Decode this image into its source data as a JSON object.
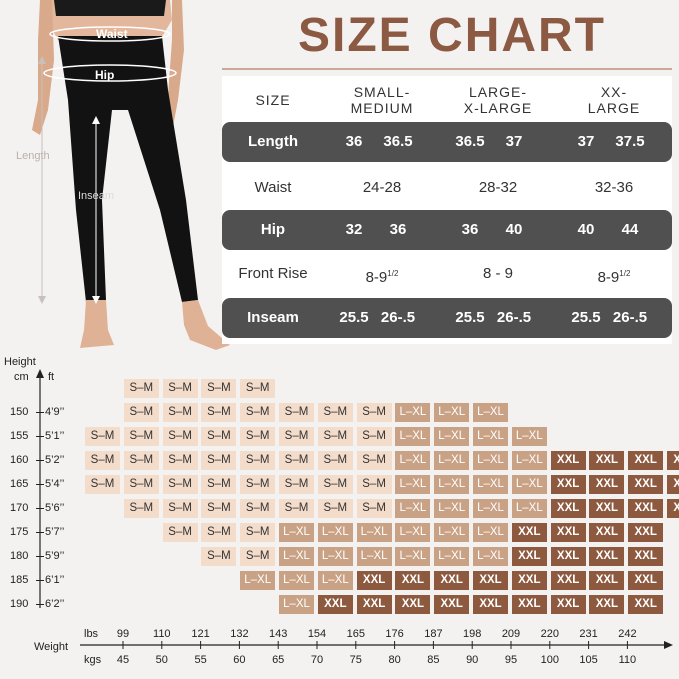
{
  "title": "SIZE CHART",
  "figure": {
    "waist_label": "Waist",
    "hip_label": "Hip",
    "length_label": "Length",
    "inseam_label": "Inseam"
  },
  "table": {
    "size_header": "SIZE",
    "columns": [
      {
        "line1": "SMALL-",
        "line2": "MEDIUM"
      },
      {
        "line1": "LARGE-",
        "line2": "X-LARGE"
      },
      {
        "line1": "XX-",
        "line2": "LARGE"
      }
    ],
    "rows": [
      {
        "label": "Length",
        "style": "dark",
        "values": [
          "36",
          "36.5",
          "36.5",
          "37",
          "37",
          "37.5"
        ]
      },
      {
        "label": "Waist",
        "style": "light",
        "values": [
          "24-28",
          "28-32",
          "32-36"
        ]
      },
      {
        "label": "Hip",
        "style": "dark",
        "values": [
          "32",
          "36",
          "36",
          "40",
          "40",
          "44"
        ]
      },
      {
        "label": "Front Rise",
        "style": "light",
        "values": [
          "8-9",
          "8 - 9",
          "8-9"
        ],
        "sup": [
          "1/2",
          "",
          "1/2"
        ]
      },
      {
        "label": "Inseam",
        "style": "dark",
        "values": [
          "25.5",
          "26-.5",
          "25.5",
          "26-.5",
          "25.5",
          "26-.5"
        ]
      }
    ]
  },
  "grid": {
    "height_label": "Height",
    "cm_label": "cm",
    "ft_label": "ft",
    "cm_ticks": [
      "150",
      "155",
      "160",
      "165",
      "170",
      "175",
      "180",
      "185",
      "190"
    ],
    "ft_ticks": [
      "4’9’’",
      "5’1’’",
      "5’2’’",
      "5’4’’",
      "5’6’’",
      "5’7’’",
      "5’9’’",
      "6’1’’",
      "6’2’’"
    ],
    "weight_label": "Weight",
    "lbs_label": "lbs",
    "kgs_label": "kgs",
    "lbs_ticks": [
      "99",
      "110",
      "121",
      "132",
      "143",
      "154",
      "165",
      "176",
      "187",
      "198",
      "209",
      "220",
      "231",
      "242"
    ],
    "kgs_ticks": [
      "45",
      "50",
      "55",
      "60",
      "65",
      "70",
      "75",
      "80",
      "85",
      "90",
      "95",
      "100",
      "105",
      "110"
    ],
    "size_labels": {
      "sm": "S–M",
      "lxl": "L–XL",
      "xxl": "XXL"
    },
    "rows": [
      {
        "start": 1,
        "cells": [
          "sm",
          "sm",
          "sm",
          "sm"
        ]
      },
      {
        "start": 1,
        "cells": [
          "sm",
          "sm",
          "sm",
          "sm",
          "sm",
          "sm",
          "sm",
          "lxl",
          "lxl",
          "lxl"
        ]
      },
      {
        "start": 0,
        "cells": [
          "sm",
          "sm",
          "sm",
          "sm",
          "sm",
          "sm",
          "sm",
          "sm",
          "lxl",
          "lxl",
          "lxl",
          "lxl"
        ]
      },
      {
        "start": 0,
        "cells": [
          "sm",
          "sm",
          "sm",
          "sm",
          "sm",
          "sm",
          "sm",
          "sm",
          "lxl",
          "lxl",
          "lxl",
          "lxl",
          "xxl",
          "xxl",
          "xxl",
          "xxl"
        ]
      },
      {
        "start": 0,
        "cells": [
          "sm",
          "sm",
          "sm",
          "sm",
          "sm",
          "sm",
          "sm",
          "sm",
          "lxl",
          "lxl",
          "lxl",
          "lxl",
          "xxl",
          "xxl",
          "xxl",
          "xxl"
        ]
      },
      {
        "start": 1,
        "cells": [
          "sm",
          "sm",
          "sm",
          "sm",
          "sm",
          "sm",
          "sm",
          "lxl",
          "lxl",
          "lxl",
          "lxl",
          "xxl",
          "xxl",
          "xxl",
          "xxl"
        ]
      },
      {
        "start": 2,
        "cells": [
          "sm",
          "sm",
          "sm",
          "lxl",
          "lxl",
          "lxl",
          "lxl",
          "lxl",
          "lxl",
          "xxl",
          "xxl",
          "xxl",
          "xxl"
        ]
      },
      {
        "start": 3,
        "cells": [
          "sm",
          "sm",
          "lxl",
          "lxl",
          "lxl",
          "lxl",
          "lxl",
          "lxl",
          "xxl",
          "xxl",
          "xxl",
          "xxl"
        ]
      },
      {
        "start": 4,
        "cells": [
          "lxl",
          "lxl",
          "lxl",
          "xxl",
          "xxl",
          "xxl",
          "xxl",
          "xxl",
          "xxl",
          "xxl",
          "xxl"
        ]
      },
      {
        "start": 5,
        "cells": [
          "lxl",
          "xxl",
          "xxl",
          "xxl",
          "xxl",
          "xxl",
          "xxl",
          "xxl",
          "xxl",
          "xxl"
        ]
      }
    ]
  },
  "colors": {
    "title": "#8c5a43",
    "dark_row": "#505050",
    "sm": "#f4dccb",
    "lxl": "#c9a185",
    "xxl": "#8d5a40"
  }
}
